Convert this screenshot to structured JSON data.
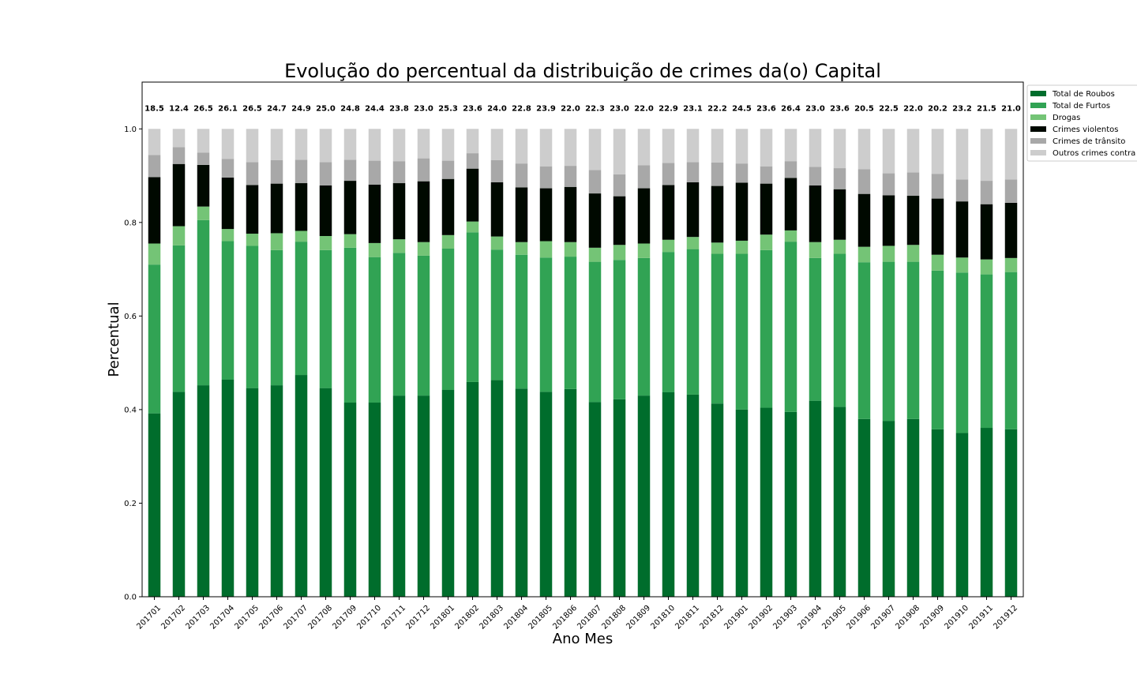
{
  "chart_data": {
    "type": "bar",
    "stacked": true,
    "title": "Evolução do percentual da distribuição de crimes da(o) Capital",
    "xlabel": "Ano Mes",
    "ylabel": "Percentual",
    "ylim": [
      0,
      1.1
    ],
    "yticks": [
      "0.0",
      "0.2",
      "0.4",
      "0.6",
      "0.8",
      "1.0"
    ],
    "legend_position": "outside-top-right",
    "grid": false,
    "categories": [
      "201701",
      "201702",
      "201703",
      "201704",
      "201705",
      "201706",
      "201707",
      "201708",
      "201709",
      "201710",
      "201711",
      "201712",
      "201801",
      "201802",
      "201803",
      "201804",
      "201805",
      "201806",
      "201807",
      "201808",
      "201809",
      "201810",
      "201811",
      "201812",
      "201901",
      "201902",
      "201903",
      "201904",
      "201905",
      "201906",
      "201907",
      "201908",
      "201909",
      "201910",
      "201911",
      "201912"
    ],
    "top_labels": [
      "18.5",
      "12.4",
      "26.5",
      "26.1",
      "26.5",
      "24.7",
      "24.9",
      "25.0",
      "24.8",
      "24.4",
      "23.8",
      "23.0",
      "25.3",
      "23.6",
      "24.0",
      "22.8",
      "23.9",
      "22.0",
      "22.3",
      "23.0",
      "22.0",
      "22.9",
      "23.1",
      "22.2",
      "24.5",
      "23.6",
      "26.4",
      "23.0",
      "23.6",
      "20.5",
      "22.5",
      "22.0",
      "20.2",
      "23.2",
      "21.5",
      "21.0"
    ],
    "series": [
      {
        "name": "Total de Roubos",
        "color": "#006d2c",
        "values": [
          0.392,
          0.438,
          0.452,
          0.464,
          0.446,
          0.452,
          0.474,
          0.446,
          0.415,
          0.415,
          0.43,
          0.43,
          0.442,
          0.459,
          0.463,
          0.445,
          0.438,
          0.444,
          0.416,
          0.422,
          0.43,
          0.437,
          0.432,
          0.413,
          0.4,
          0.404,
          0.395,
          0.419,
          0.406,
          0.38,
          0.376,
          0.38,
          0.358,
          0.35,
          0.361,
          0.358
        ]
      },
      {
        "name": "Total de Furtos",
        "color": "#31a354",
        "values": [
          0.318,
          0.313,
          0.353,
          0.296,
          0.304,
          0.289,
          0.285,
          0.295,
          0.331,
          0.311,
          0.305,
          0.299,
          0.302,
          0.32,
          0.279,
          0.286,
          0.287,
          0.283,
          0.3,
          0.298,
          0.294,
          0.3,
          0.311,
          0.32,
          0.333,
          0.337,
          0.364,
          0.305,
          0.327,
          0.335,
          0.34,
          0.336,
          0.339,
          0.343,
          0.328,
          0.336
        ]
      },
      {
        "name": "Drogas",
        "color": "#74c476",
        "values": [
          0.045,
          0.041,
          0.029,
          0.026,
          0.026,
          0.036,
          0.023,
          0.03,
          0.029,
          0.03,
          0.029,
          0.029,
          0.029,
          0.023,
          0.028,
          0.027,
          0.035,
          0.031,
          0.03,
          0.032,
          0.031,
          0.026,
          0.026,
          0.024,
          0.028,
          0.033,
          0.024,
          0.034,
          0.03,
          0.033,
          0.034,
          0.036,
          0.034,
          0.032,
          0.032,
          0.03
        ]
      },
      {
        "name": "Crimes violentos",
        "color": "#000900",
        "values": [
          0.142,
          0.133,
          0.089,
          0.11,
          0.104,
          0.106,
          0.102,
          0.108,
          0.114,
          0.125,
          0.12,
          0.13,
          0.12,
          0.113,
          0.116,
          0.117,
          0.113,
          0.118,
          0.116,
          0.104,
          0.118,
          0.117,
          0.117,
          0.121,
          0.124,
          0.109,
          0.112,
          0.121,
          0.108,
          0.113,
          0.108,
          0.105,
          0.12,
          0.12,
          0.118,
          0.118
        ]
      },
      {
        "name": "Crimes de trânsito",
        "color": "#a8a8a8",
        "values": [
          0.047,
          0.036,
          0.026,
          0.04,
          0.049,
          0.05,
          0.05,
          0.05,
          0.045,
          0.051,
          0.047,
          0.049,
          0.039,
          0.033,
          0.047,
          0.051,
          0.047,
          0.045,
          0.05,
          0.047,
          0.049,
          0.047,
          0.043,
          0.05,
          0.041,
          0.037,
          0.036,
          0.04,
          0.045,
          0.053,
          0.047,
          0.05,
          0.053,
          0.047,
          0.05,
          0.05
        ]
      },
      {
        "name": "Outros crimes contra",
        "color": "#cdcdcd",
        "values": [
          0.056,
          0.039,
          0.051,
          0.064,
          0.071,
          0.067,
          0.066,
          0.071,
          0.066,
          0.068,
          0.069,
          0.063,
          0.068,
          0.052,
          0.067,
          0.074,
          0.08,
          0.079,
          0.088,
          0.097,
          0.078,
          0.073,
          0.071,
          0.072,
          0.074,
          0.08,
          0.069,
          0.081,
          0.084,
          0.086,
          0.095,
          0.093,
          0.096,
          0.108,
          0.111,
          0.108
        ]
      }
    ]
  }
}
